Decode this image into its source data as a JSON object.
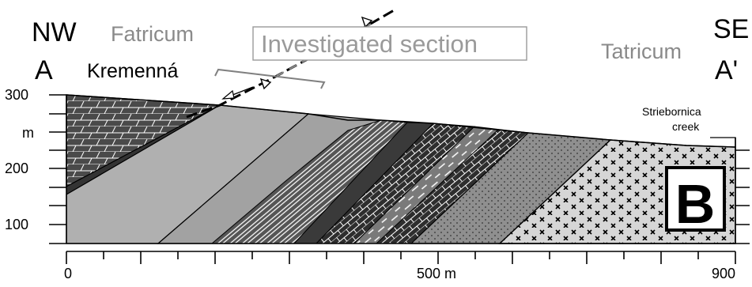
{
  "labels": {
    "nw": "NW",
    "se": "SE",
    "a": "A",
    "a_prime": "A'",
    "fatricum": "Fatricum",
    "tatricum": "Tatricum",
    "kremenna": "Kremenná",
    "investigated_section": "Investigated section",
    "striebornica_line1": "Striebornica",
    "striebornica_line2": "creek",
    "panel_letter": "B"
  },
  "vertical_axis": {
    "ticks": [
      {
        "label": "300"
      },
      {
        "label": "m"
      },
      {
        "label": "200"
      },
      {
        "label": "100"
      }
    ]
  },
  "horizontal_axis": {
    "ticks": [
      {
        "label": "0"
      },
      {
        "label": "500 m"
      },
      {
        "label": "900"
      }
    ]
  },
  "colors": {
    "outline": "#000000",
    "fatricum_text": "#8a8a8a",
    "carbonate_dark": "#4a4a4a",
    "shale_light": "#a9a9a9",
    "shale_mid": "#8f8f8f",
    "granite": "#d6d6d6",
    "dark_band": "#3c3c3c"
  }
}
